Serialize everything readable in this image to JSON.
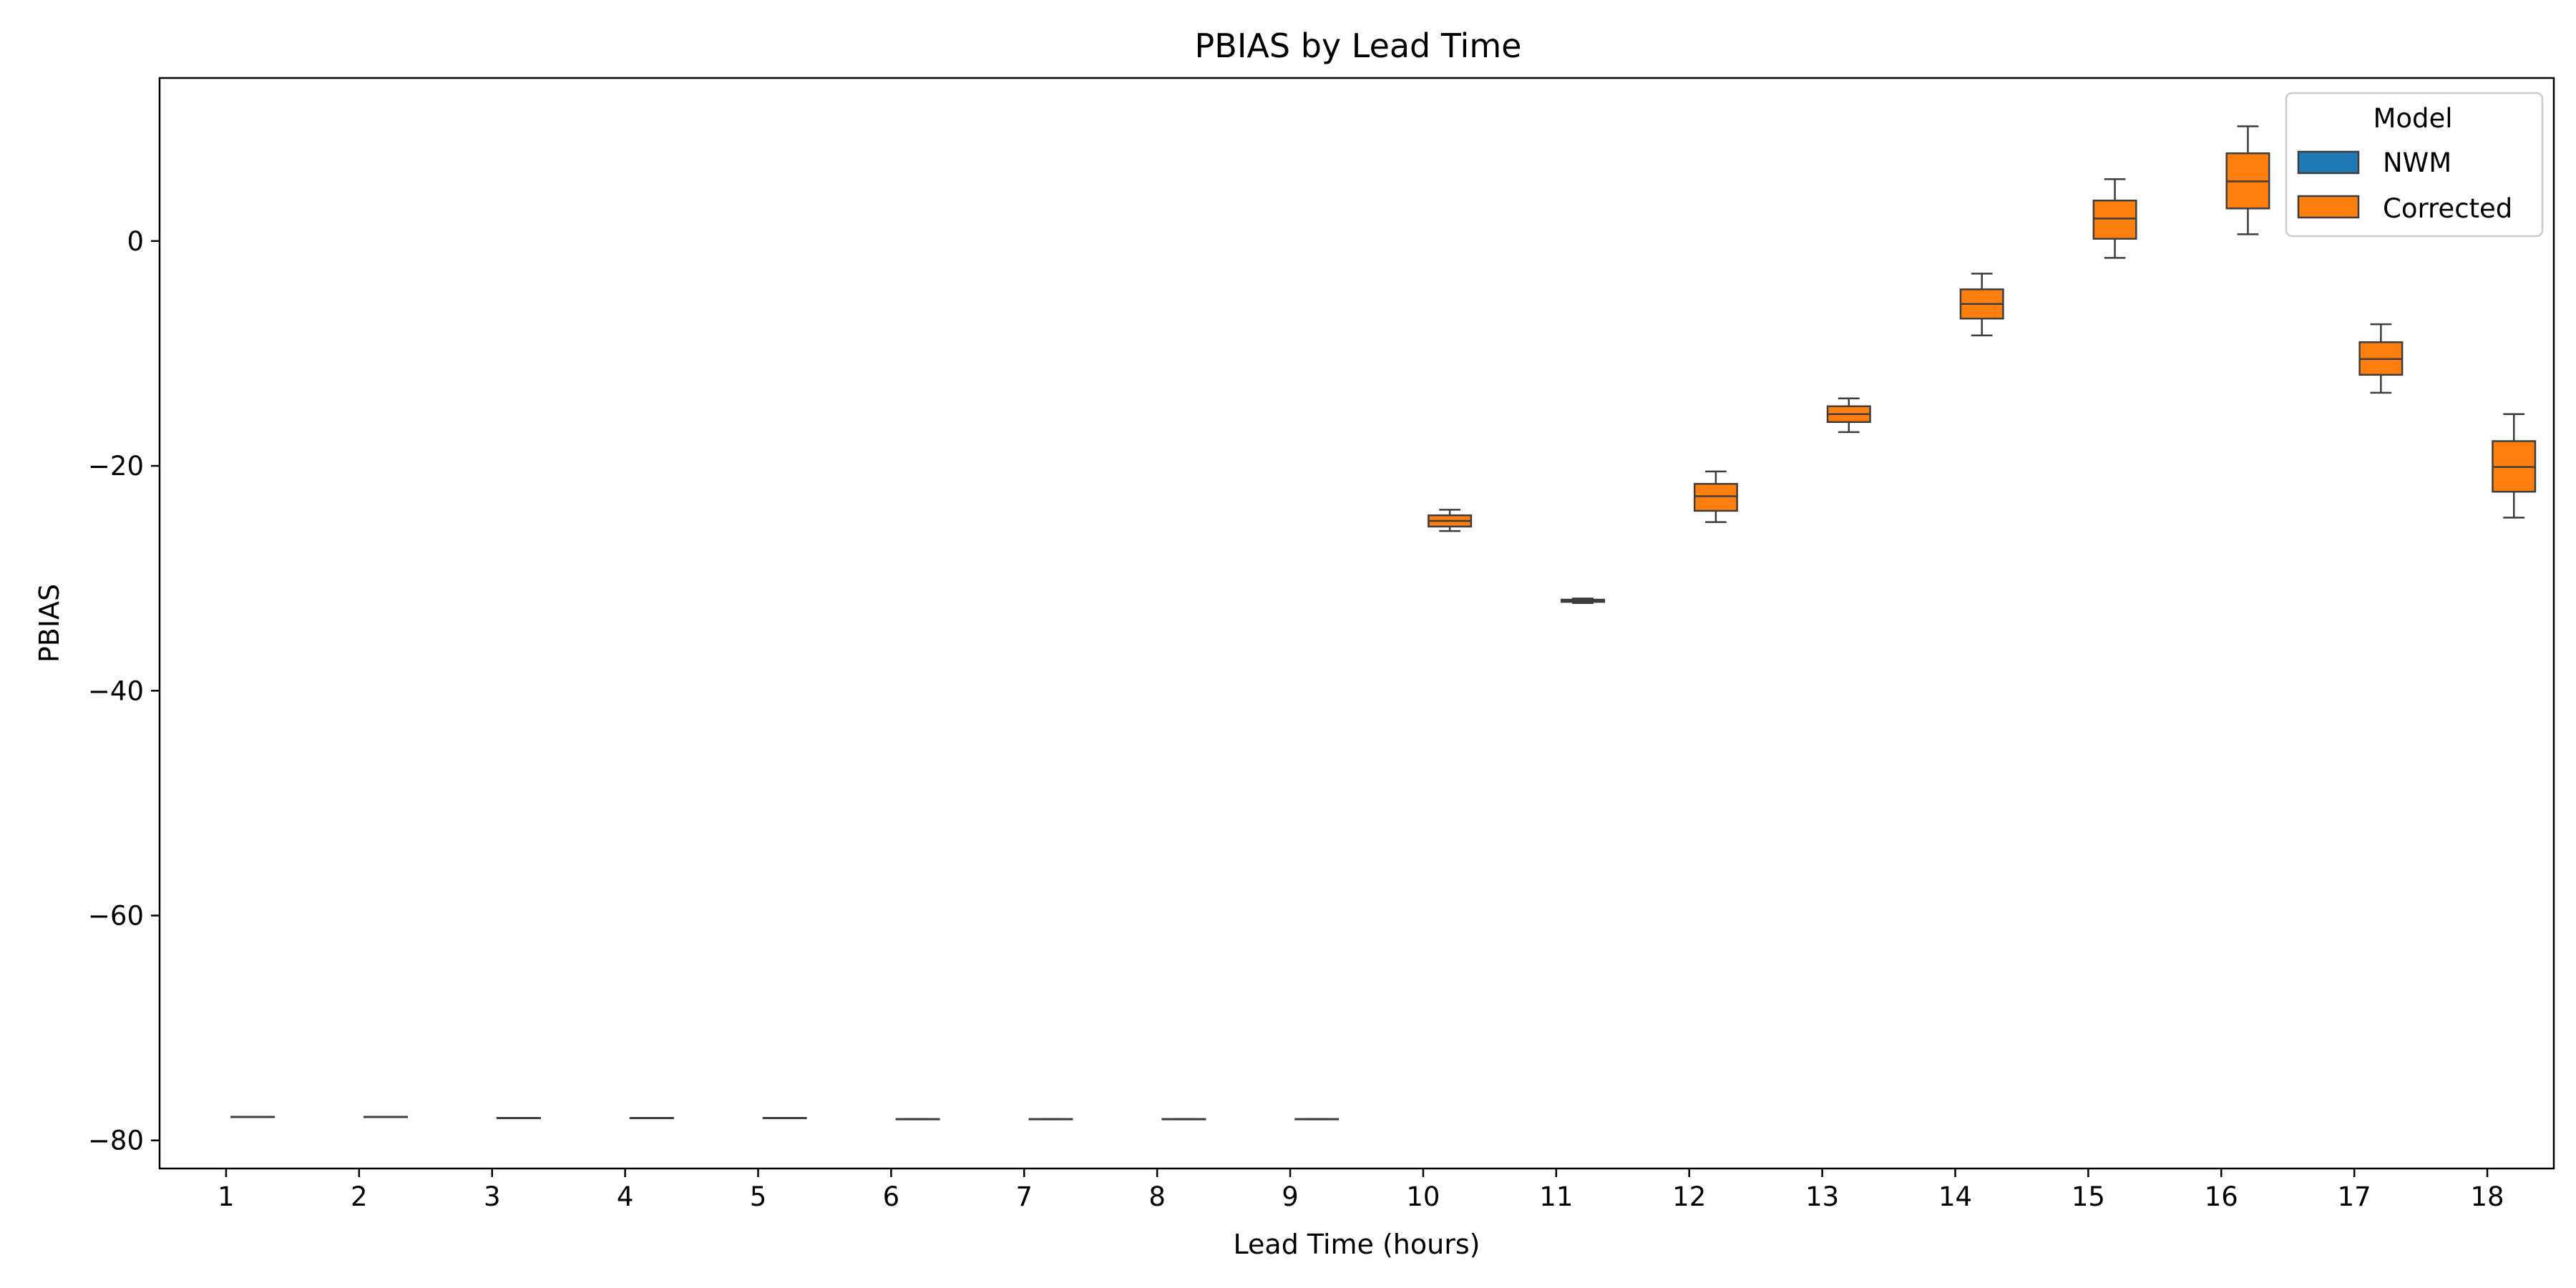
{
  "chart_data": {
    "type": "box",
    "title": "PBIAS by Lead Time",
    "xlabel": "Lead Time (hours)",
    "ylabel": "PBIAS",
    "categories": [
      "1",
      "2",
      "3",
      "4",
      "5",
      "6",
      "7",
      "8",
      "9",
      "10",
      "11",
      "12",
      "13",
      "14",
      "15",
      "16",
      "17",
      "18"
    ],
    "yticks": [
      0,
      -20,
      -40,
      -60,
      -80
    ],
    "ytick_labels": [
      "0",
      "−20",
      "−40",
      "−60",
      "−80"
    ],
    "ylim": [
      -82.5,
      14.5
    ],
    "grid": false,
    "legend": {
      "title": "Model",
      "placement": "top-right",
      "entries": [
        {
          "name": "NWM",
          "color": "#1f77b4"
        },
        {
          "name": "Corrected",
          "color": "#ff7f0e"
        }
      ]
    },
    "series": [
      {
        "name": "Corrected",
        "color": "#ff7f0e",
        "boxes": [
          {
            "x": "1",
            "whislo": -77.9,
            "q1": -77.9,
            "med": -77.9,
            "q3": -77.9,
            "whishi": -77.9
          },
          {
            "x": "2",
            "whislo": -77.9,
            "q1": -77.9,
            "med": -77.9,
            "q3": -77.9,
            "whishi": -77.9
          },
          {
            "x": "3",
            "whislo": -78.0,
            "q1": -78.0,
            "med": -78.0,
            "q3": -78.0,
            "whishi": -78.0
          },
          {
            "x": "4",
            "whislo": -78.0,
            "q1": -78.0,
            "med": -78.0,
            "q3": -78.0,
            "whishi": -78.0
          },
          {
            "x": "5",
            "whislo": -78.0,
            "q1": -78.0,
            "med": -78.0,
            "q3": -78.0,
            "whishi": -78.0
          },
          {
            "x": "6",
            "whislo": -78.1,
            "q1": -78.1,
            "med": -78.1,
            "q3": -78.1,
            "whishi": -78.1
          },
          {
            "x": "7",
            "whislo": -78.1,
            "q1": -78.1,
            "med": -78.1,
            "q3": -78.1,
            "whishi": -78.1
          },
          {
            "x": "8",
            "whislo": -78.1,
            "q1": -78.1,
            "med": -78.1,
            "q3": -78.1,
            "whishi": -78.1
          },
          {
            "x": "9",
            "whislo": -78.1,
            "q1": -78.1,
            "med": -78.1,
            "q3": -78.1,
            "whishi": -78.1
          },
          {
            "x": "10",
            "whislo": -25.8,
            "q1": -25.4,
            "med": -24.9,
            "q3": -24.4,
            "whishi": -23.9
          },
          {
            "x": "11",
            "whislo": -32.2,
            "q1": -32.1,
            "med": -32.0,
            "q3": -31.9,
            "whishi": -31.8
          },
          {
            "x": "12",
            "whislo": -25.0,
            "q1": -24.0,
            "med": -22.7,
            "q3": -21.6,
            "whishi": -20.5
          },
          {
            "x": "13",
            "whislo": -17.0,
            "q1": -16.1,
            "med": -15.4,
            "q3": -14.7,
            "whishi": -14.0
          },
          {
            "x": "14",
            "whislo": -8.4,
            "q1": -6.9,
            "med": -5.6,
            "q3": -4.3,
            "whishi": -2.9
          },
          {
            "x": "15",
            "whislo": -1.5,
            "q1": 0.2,
            "med": 2.0,
            "q3": 3.6,
            "whishi": 5.5
          },
          {
            "x": "16",
            "whislo": 0.6,
            "q1": 2.9,
            "med": 5.3,
            "q3": 7.8,
            "whishi": 10.2
          },
          {
            "x": "17",
            "whislo": -13.5,
            "q1": -11.9,
            "med": -10.5,
            "q3": -9.0,
            "whishi": -7.4
          },
          {
            "x": "18",
            "whislo": -24.6,
            "q1": -22.3,
            "med": -20.1,
            "q3": -17.8,
            "whishi": -15.4
          }
        ]
      }
    ]
  }
}
